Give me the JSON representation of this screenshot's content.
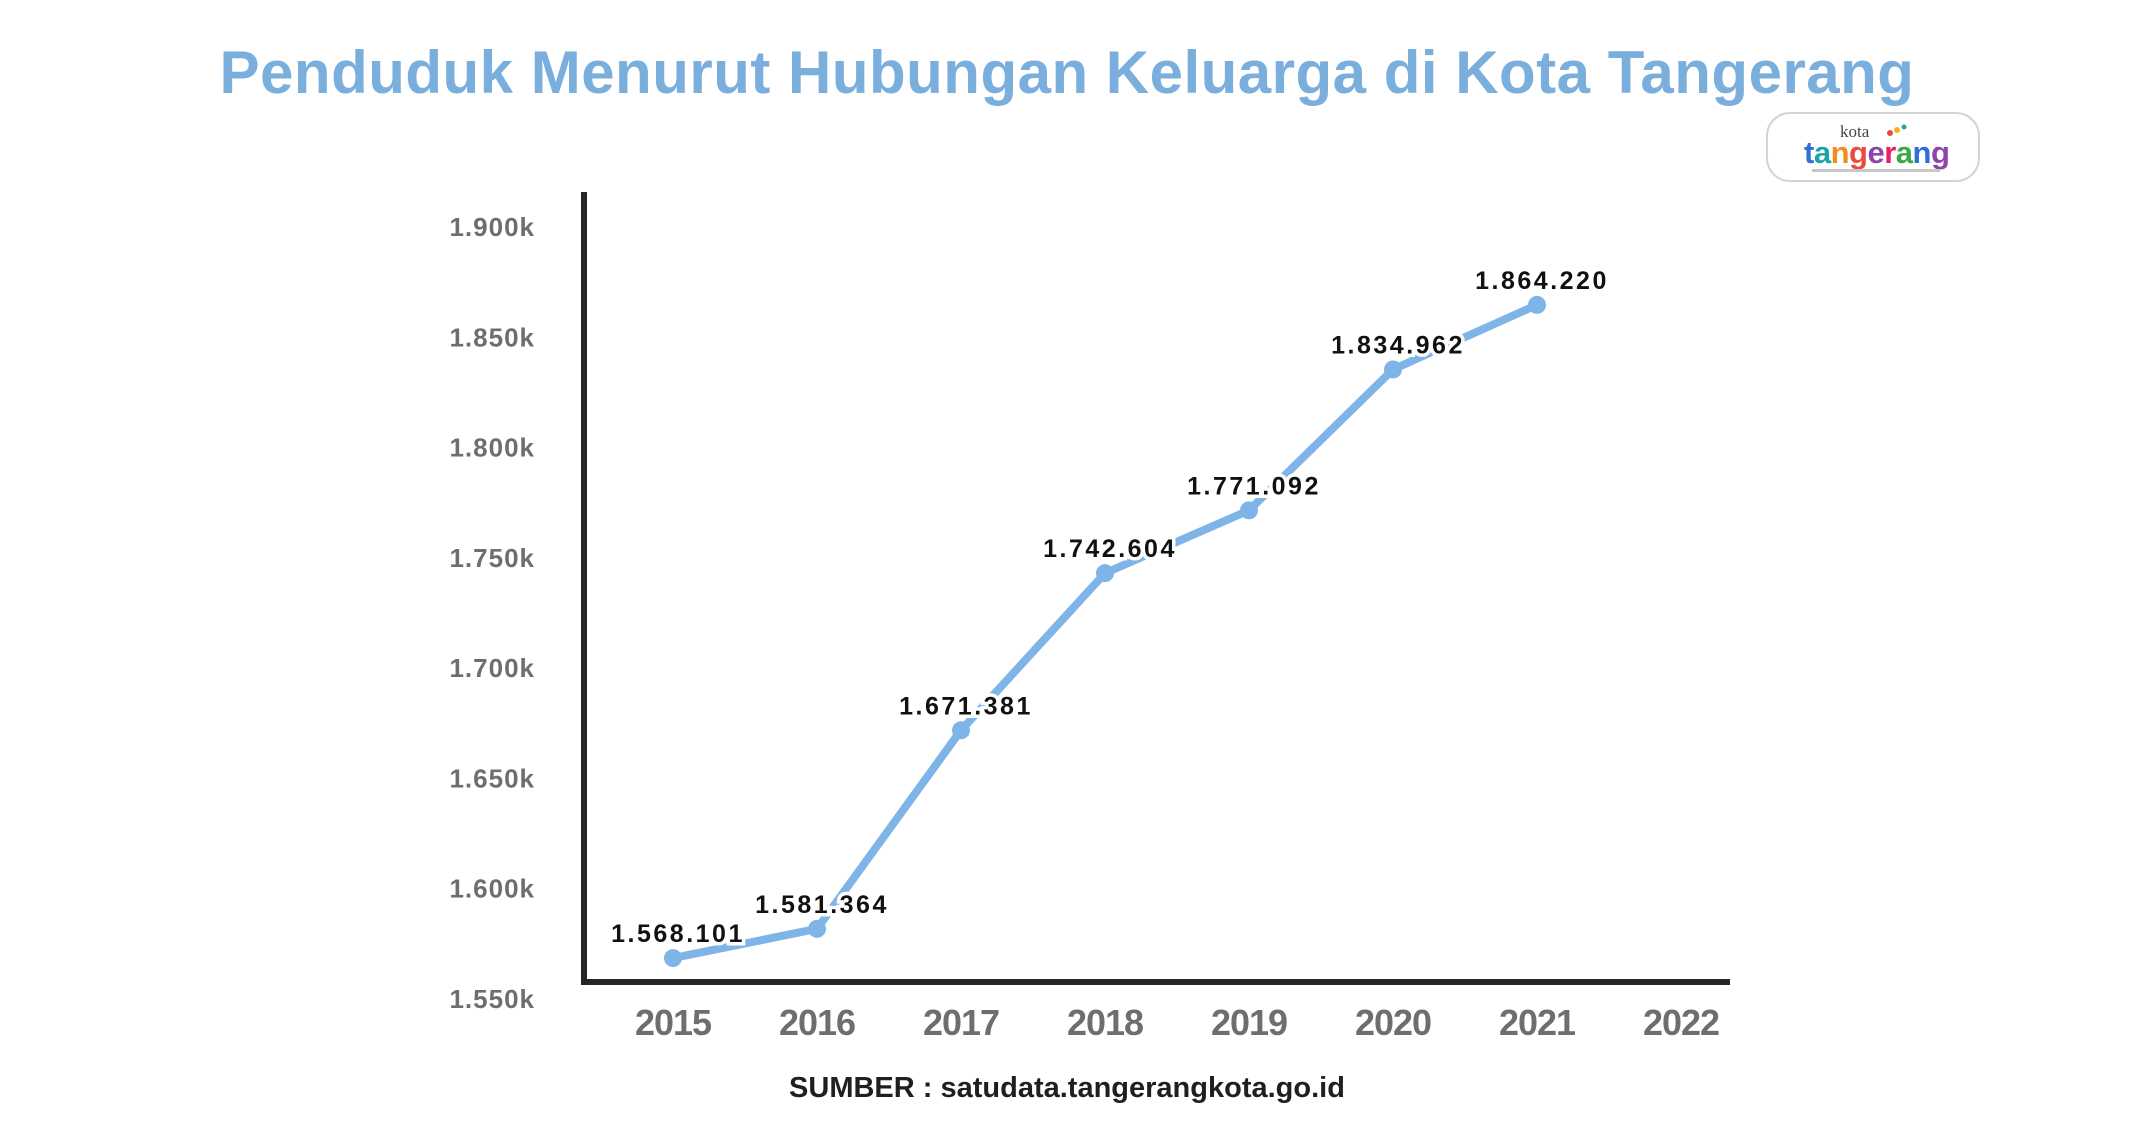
{
  "title": "Penduduk Menurut Hubungan Keluarga di Kota Tangerang",
  "logo": {
    "small_text": "kota",
    "letters": [
      "t",
      "a",
      "n",
      "g",
      "e",
      "r",
      "a",
      "n",
      "g"
    ],
    "letter_colors": [
      "#2e6fd8",
      "#1aa6a6",
      "#f28c1a",
      "#e94b3c",
      "#8e44ad",
      "#e91e63",
      "#3aa845",
      "#2e6fd8",
      "#8e44ad"
    ]
  },
  "source": "SUMBER : satudata.tangerangkota.go.id",
  "colors": {
    "title": "#7aaedd",
    "line": "#7fb4e8",
    "axis": "#262626",
    "tick_text": "#6e6e6e",
    "label_text": "#111111"
  },
  "chart_data": {
    "type": "line",
    "title": "Penduduk Menurut Hubungan Keluarga di Kota Tangerang",
    "xlabel": "",
    "ylabel": "",
    "x_categories": [
      "2015",
      "2016",
      "2017",
      "2018",
      "2019",
      "2020",
      "2021",
      "2022"
    ],
    "ylim": [
      1550000,
      1900000
    ],
    "y_ticks": [
      1550000,
      1600000,
      1650000,
      1700000,
      1750000,
      1800000,
      1850000,
      1900000
    ],
    "y_tick_labels": [
      "1.550k",
      "1.600k",
      "1.650k",
      "1.700k",
      "1.750k",
      "1.800k",
      "1.850k",
      "1.900k"
    ],
    "grid": false,
    "legend": "none",
    "series": [
      {
        "x": [
          "2015",
          "2016",
          "2017",
          "2018",
          "2019",
          "2020",
          "2021"
        ],
        "values": [
          1568101,
          1581364,
          1671381,
          1742604,
          1771092,
          1834962,
          1864220
        ],
        "labels": [
          "1.568.101",
          "1.581.364",
          "1.671.381",
          "1.742.604",
          "1.771.092",
          "1.834.962",
          "1.864.220"
        ]
      }
    ]
  }
}
